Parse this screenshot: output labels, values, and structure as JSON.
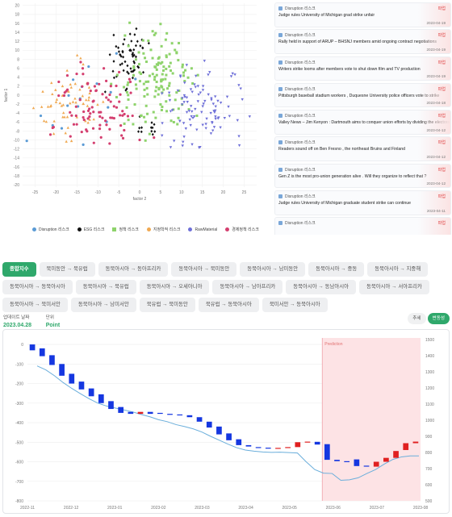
{
  "scatter": {
    "xlabel": "factor 2",
    "ylabel": "factor 1",
    "xticks": [
      -25,
      -20,
      -15,
      -10,
      -5,
      0,
      5,
      10,
      15,
      20,
      25
    ],
    "yticks": [
      20,
      18,
      16,
      14,
      12,
      10,
      8,
      6,
      4,
      2,
      0,
      -2,
      -4,
      -6,
      -8,
      -10,
      -12,
      -14,
      -16,
      -18,
      -20
    ],
    "xlim": [
      -28,
      28
    ],
    "ylim": [
      -20.5,
      20.5
    ],
    "legend": [
      {
        "label": "Disruption 리스크",
        "color": "#5b9bd5",
        "marker": "circle"
      },
      {
        "label": "ESG 리스크",
        "color": "#111111",
        "marker": "diamond"
      },
      {
        "label": "정책 리스크",
        "color": "#8ed36b",
        "marker": "square"
      },
      {
        "label": "지정학적 리스크",
        "color": "#f0a952",
        "marker": "triangle"
      },
      {
        "label": "RawMaterial",
        "color": "#6e6fd8",
        "marker": "tri-down"
      },
      {
        "label": "경제정책 리스크",
        "color": "#d43f6f",
        "marker": "circle"
      }
    ]
  },
  "news": [
    {
      "source": "Disruption 리스크",
      "tag": "파업",
      "title": "Judge rules University of Michigan grad strike unfair",
      "date": "2023-04-19"
    },
    {
      "source": "Disruption 리스크",
      "tag": "파업",
      "title": "Rally held in support of ARUP – BHSNJ members amid ongoing contract negotiations",
      "date": "2023-04-19"
    },
    {
      "source": "Disruption 리스크",
      "tag": "파업",
      "title": "Writers strike looms after members vote to shut down film and TV production",
      "date": "2023-04-19"
    },
    {
      "source": "Disruption 리스크",
      "tag": "파업",
      "title": "Pittsburgh baseball stadium workers , Duquesne University police officers vote to strike",
      "date": "2023-04-18"
    },
    {
      "source": "Disruption 리스크",
      "tag": "파업",
      "title": "Valley News – Jim Kenyon : Dartmouth aims to conquer union efforts by dividing the electorate",
      "date": "2023-04-12"
    },
    {
      "source": "Disruption 리스크",
      "tag": "파업",
      "title": "Readers sound off on Ben Fresno , the northeast Bruins and Finland",
      "date": "2023-04-12"
    },
    {
      "source": "Disruption 리스크",
      "tag": "파업",
      "title": "Gen Z is the most pro-union generation alive . Will they organize to reflect that ?",
      "date": "2023-04-12"
    },
    {
      "source": "Disruption 리스크",
      "tag": "파업",
      "title": "Judge rules University of Michigan graduate student strike can continue",
      "date": "2023-04-11"
    },
    {
      "source": "Disruption 리스크",
      "tag": "파업",
      "title": "",
      "date": ""
    }
  ],
  "routes": [
    [
      "종합지수",
      "북미동안 → 북유럽",
      "동북아시아 → 동아프리카",
      "동북아시아 → 북미동안",
      "동북아시아 → 남미동안",
      "동북아시아 → 중동",
      "동북아시아 → 지중해"
    ],
    [
      "동북아시아 → 동북아시아",
      "동북아시아 → 북유럽",
      "동북아시아 → 오세아니아",
      "동북아시아 → 남아프리카",
      "동북아시아 → 동남아시아",
      "동북아시아 → 서아프리카"
    ],
    [
      "동북아시아 → 북미서안",
      "동북아시아 → 남미서안",
      "북유럽 → 북미동안",
      "북유럽 → 동북아시아",
      "북미서안 → 동북아시아"
    ]
  ],
  "info": {
    "update_label": "업데이트 날짜",
    "update_value": "2023.04.28",
    "unit_label": "단위",
    "unit_value": "Point"
  },
  "toggle": [
    "추세",
    "변동성"
  ],
  "chart_data": {
    "type": "candlestick",
    "prediction_label": "Prediction",
    "y_left_ticks": [
      0,
      -100,
      -200,
      -300,
      -400,
      -500,
      -600,
      -700,
      -800
    ],
    "y_left_lim": [
      -800,
      25
    ],
    "y_right_ticks": [
      1500,
      1400,
      1300,
      1200,
      1100,
      1000,
      900,
      800,
      700,
      600,
      500
    ],
    "x_ticks": [
      "2022-11",
      "2022-12",
      "2023-01",
      "2023-02",
      "2023-03",
      "2023-04",
      "2023-05",
      "2023-06",
      "2023-07",
      "2023-08"
    ],
    "up_color": "#e02020",
    "down_color": "#1537e0",
    "line_color": "#6aaedb",
    "candles": [
      {
        "o": 0,
        "c": -30
      },
      {
        "o": -20,
        "c": -60
      },
      {
        "o": -55,
        "c": -105
      },
      {
        "o": -100,
        "c": -160
      },
      {
        "o": -150,
        "c": -200
      },
      {
        "o": -190,
        "c": -230
      },
      {
        "o": -225,
        "c": -265
      },
      {
        "o": -255,
        "c": -300
      },
      {
        "o": -290,
        "c": -330
      },
      {
        "o": -320,
        "c": -350
      },
      {
        "o": -345,
        "c": -355
      },
      {
        "o": -355,
        "c": -345
      },
      {
        "o": -345,
        "c": -355
      },
      {
        "o": -350,
        "c": -352
      },
      {
        "o": -355,
        "c": -360
      },
      {
        "o": -358,
        "c": -362
      },
      {
        "o": -362,
        "c": -372
      },
      {
        "o": -372,
        "c": -395
      },
      {
        "o": -395,
        "c": -425
      },
      {
        "o": -420,
        "c": -460
      },
      {
        "o": -455,
        "c": -490
      },
      {
        "o": -485,
        "c": -515
      },
      {
        "o": -515,
        "c": -522
      },
      {
        "o": -525,
        "c": -527
      },
      {
        "o": -528,
        "c": -530
      },
      {
        "o": -530,
        "c": -529
      },
      {
        "o": -528,
        "c": -525
      },
      {
        "o": -525,
        "c": -500
      },
      {
        "o": -500,
        "c": -497
      },
      {
        "o": -498,
        "c": -512
      },
      {
        "o": -510,
        "c": -590
      },
      {
        "o": -590,
        "c": -597
      },
      {
        "o": -597,
        "c": -599
      },
      {
        "o": -588,
        "c": -622
      },
      {
        "o": -620,
        "c": -625
      },
      {
        "o": -625,
        "c": -600
      },
      {
        "o": -600,
        "c": -580
      },
      {
        "o": -580,
        "c": -545
      },
      {
        "o": -540,
        "c": -505
      },
      {
        "o": -505,
        "c": -497
      }
    ],
    "prediction_start_index": 30,
    "line": [
      -110,
      -130,
      -160,
      -195,
      -225,
      -252,
      -278,
      -300,
      -315,
      -325,
      -335,
      -345,
      -358,
      -370,
      -385,
      -395,
      -410,
      -420,
      -432,
      -448,
      -470,
      -490,
      -510,
      -528,
      -540,
      -546,
      -550,
      -552,
      -551,
      -553,
      -555,
      -600,
      -640,
      -658,
      -660,
      -695,
      -692,
      -682,
      -660,
      -640,
      -612,
      -588,
      -575,
      -570,
      -570
    ]
  }
}
